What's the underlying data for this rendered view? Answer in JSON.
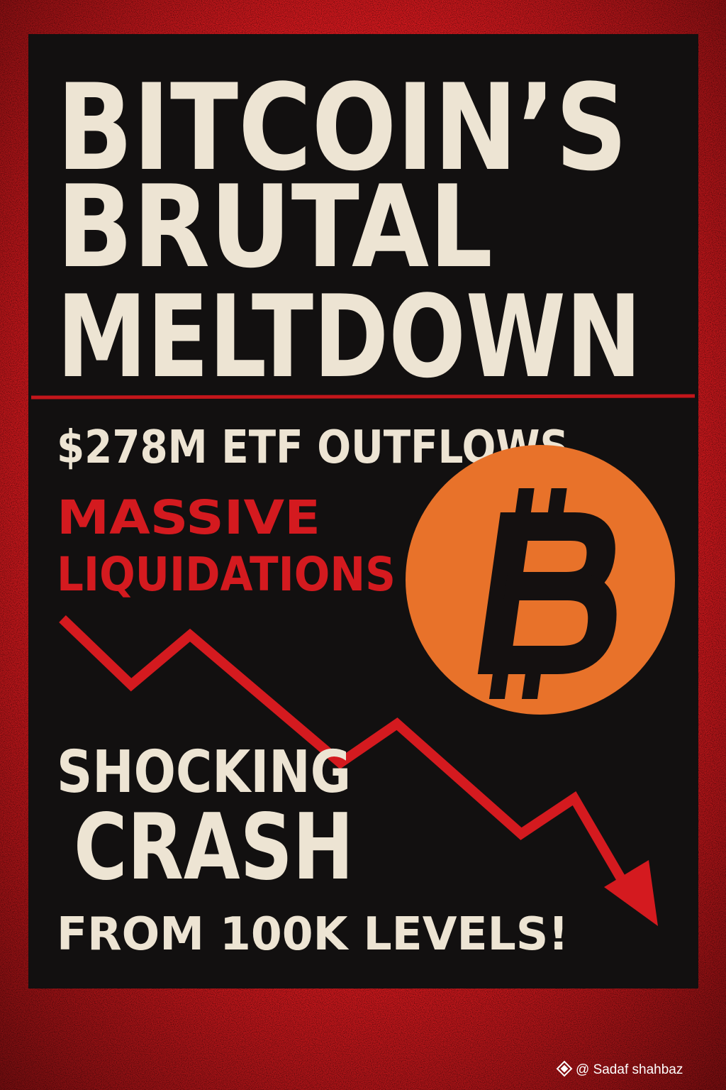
{
  "headline": [
    "BITCOIN’S",
    "BRUTAL",
    "MELTDOWN"
  ],
  "subheadline": "$278M ETF OUTFLOWS",
  "alert": [
    "MASSIVE",
    "LIQUIDATIONS"
  ],
  "callout": [
    "SHOCKING",
    "CRASH",
    "FROM 100K LEVELS!"
  ],
  "watermark": "@ Sadaf shahbaz"
}
